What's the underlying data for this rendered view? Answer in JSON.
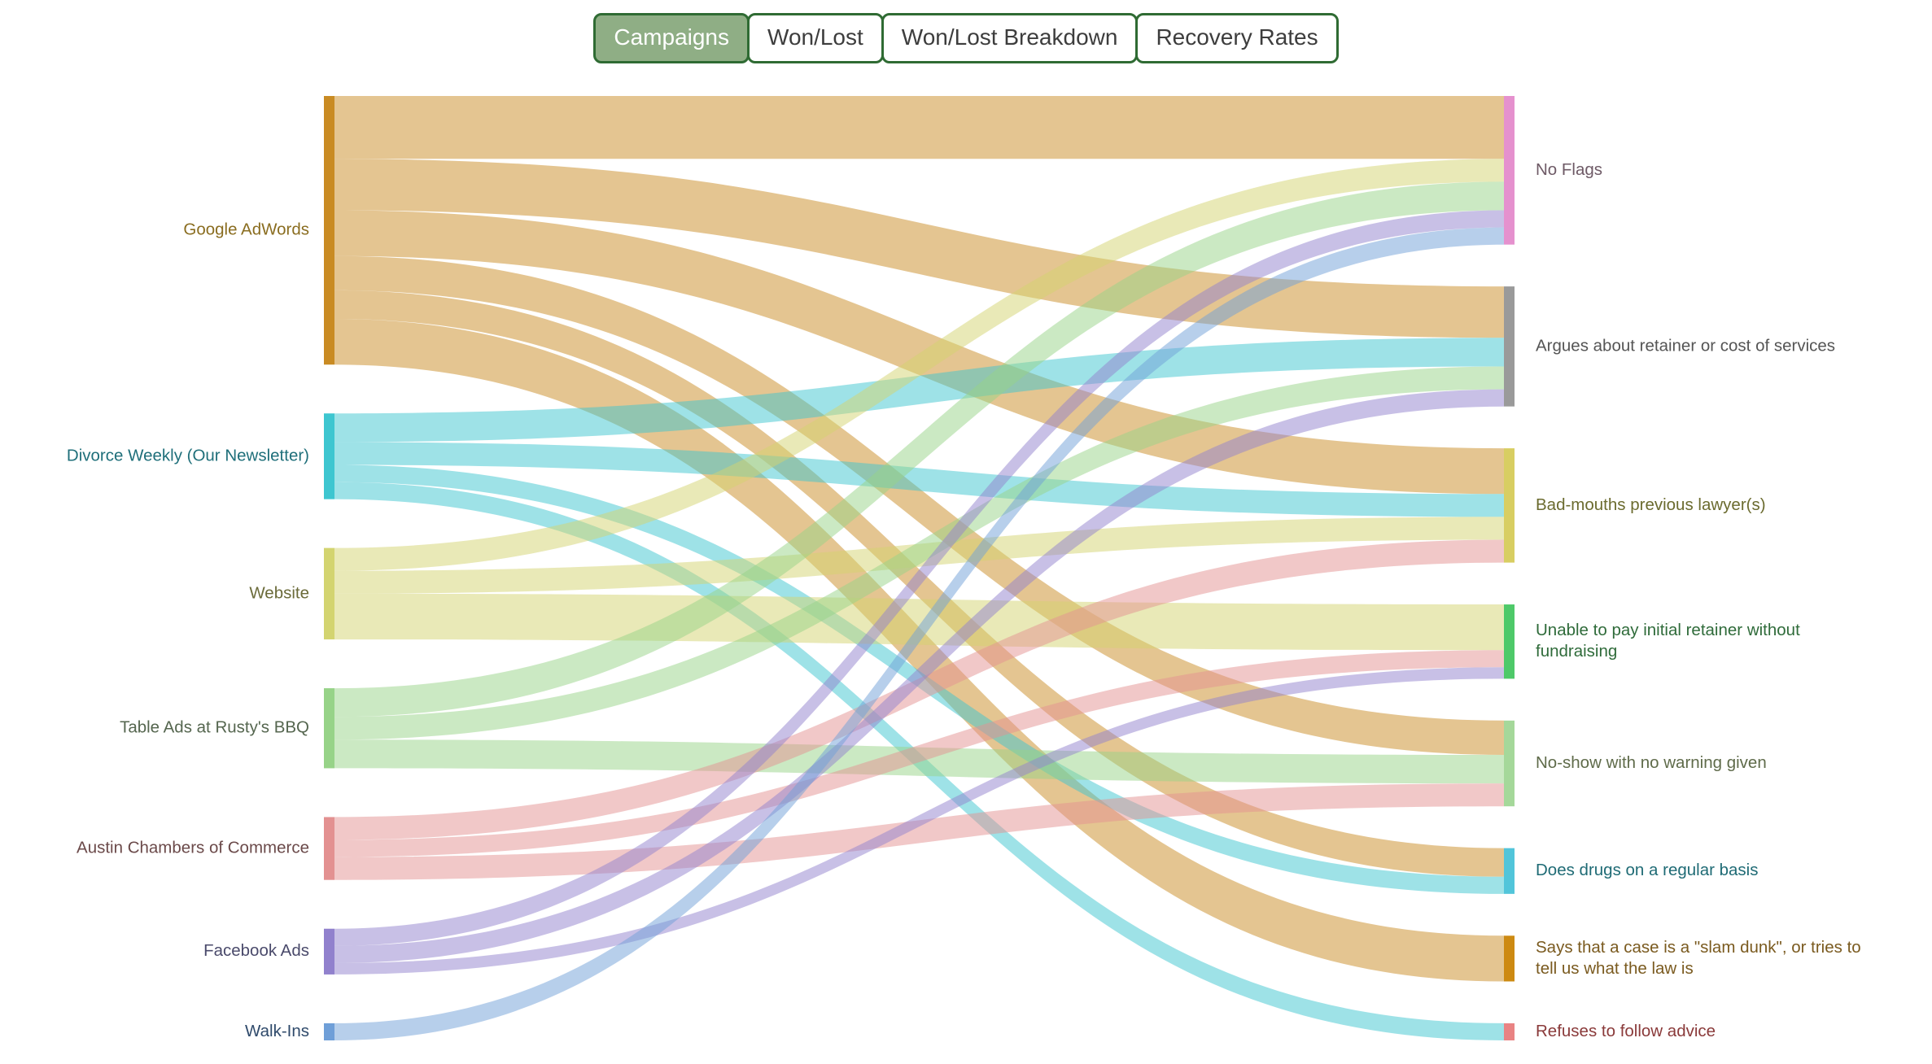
{
  "tabs": {
    "border_color": "#2f6b33",
    "active_bg": "#8fae85",
    "active_text": "#ffffff",
    "inactive_text": "#3d3d3d",
    "items": [
      {
        "label": "Campaigns",
        "active": true
      },
      {
        "label": "Won/Lost",
        "active": false
      },
      {
        "label": "Won/Lost Breakdown",
        "active": false
      },
      {
        "label": "Recovery Rates",
        "active": false
      }
    ]
  },
  "chart_data": {
    "type": "sankey",
    "title": "",
    "orientation": "horizontal",
    "sources": [
      {
        "name": "Google AdWords",
        "color": "#c98b23",
        "label_color": "#8a6d20"
      },
      {
        "name": "Divorce Weekly (Our Newsletter)",
        "color": "#3ec6d0",
        "label_color": "#1f6f7a"
      },
      {
        "name": "Website",
        "color": "#d3d470",
        "label_color": "#6b6b3a"
      },
      {
        "name": "Table Ads at Rusty's BBQ",
        "color": "#97d388",
        "label_color": "#55664f"
      },
      {
        "name": "Austin Chambers of Commerce",
        "color": "#e39191",
        "label_color": "#6b4a4a"
      },
      {
        "name": "Facebook Ads",
        "color": "#9181cd",
        "label_color": "#4a4a6b"
      },
      {
        "name": "Walk-Ins",
        "color": "#6f9fd8",
        "label_color": "#2f4a6b"
      }
    ],
    "targets": [
      {
        "name": "No Flags",
        "color": "#e591ce",
        "label_color": "#6e5a66"
      },
      {
        "name": "Argues about retainer or cost of services",
        "color": "#9a9a9a",
        "label_color": "#555555"
      },
      {
        "name": "Bad-mouths previous lawyer(s)",
        "color": "#d8ce62",
        "label_color": "#6b6b2f"
      },
      {
        "name": "Unable to pay initial retainer without fundraising",
        "color": "#4ec969",
        "label_color": "#2f6b3a"
      },
      {
        "name": "No-show with no warning given",
        "color": "#a5d89a",
        "label_color": "#5f6b4a"
      },
      {
        "name": "Does drugs on a regular basis",
        "color": "#52c5da",
        "label_color": "#1f6b75"
      },
      {
        "name": "Says that a case is a \"slam dunk\", or tries to tell us what the law is",
        "color": "#cd8a12",
        "label_color": "#7a5a1f"
      },
      {
        "name": "Refuses to follow advice",
        "color": "#e98383",
        "label_color": "#8a3a3a"
      }
    ],
    "links": [
      {
        "source": "Google AdWords",
        "target": "No Flags",
        "value": 11
      },
      {
        "source": "Google AdWords",
        "target": "Argues about retainer or cost of services",
        "value": 9
      },
      {
        "source": "Google AdWords",
        "target": "Bad-mouths previous lawyer(s)",
        "value": 8
      },
      {
        "source": "Google AdWords",
        "target": "No-show with no warning given",
        "value": 6
      },
      {
        "source": "Google AdWords",
        "target": "Does drugs on a regular basis",
        "value": 5
      },
      {
        "source": "Google AdWords",
        "target": "Says that a case is a \"slam dunk\", or tries to tell us what the law is",
        "value": 8
      },
      {
        "source": "Divorce Weekly (Our Newsletter)",
        "target": "Argues about retainer or cost of services",
        "value": 5
      },
      {
        "source": "Divorce Weekly (Our Newsletter)",
        "target": "Bad-mouths previous lawyer(s)",
        "value": 4
      },
      {
        "source": "Divorce Weekly (Our Newsletter)",
        "target": "Does drugs on a regular basis",
        "value": 3
      },
      {
        "source": "Divorce Weekly (Our Newsletter)",
        "target": "Refuses to follow advice",
        "value": 3
      },
      {
        "source": "Website",
        "target": "No Flags",
        "value": 4
      },
      {
        "source": "Website",
        "target": "Bad-mouths previous lawyer(s)",
        "value": 4
      },
      {
        "source": "Website",
        "target": "Unable to pay initial retainer without fundraising",
        "value": 8
      },
      {
        "source": "Table Ads at Rusty's BBQ",
        "target": "No Flags",
        "value": 5
      },
      {
        "source": "Table Ads at Rusty's BBQ",
        "target": "Argues about retainer or cost of services",
        "value": 4
      },
      {
        "source": "Table Ads at Rusty's BBQ",
        "target": "No-show with no warning given",
        "value": 5
      },
      {
        "source": "Austin Chambers of Commerce",
        "target": "Bad-mouths previous lawyer(s)",
        "value": 4
      },
      {
        "source": "Austin Chambers of Commerce",
        "target": "Unable to pay initial retainer without fundraising",
        "value": 3
      },
      {
        "source": "Austin Chambers of Commerce",
        "target": "No-show with no warning given",
        "value": 4
      },
      {
        "source": "Facebook Ads",
        "target": "No Flags",
        "value": 3
      },
      {
        "source": "Facebook Ads",
        "target": "Argues about retainer or cost of services",
        "value": 3
      },
      {
        "source": "Facebook Ads",
        "target": "Unable to pay initial retainer without fundraising",
        "value": 2
      },
      {
        "source": "Walk-Ins",
        "target": "No Flags",
        "value": 3
      }
    ],
    "link_opacity": 0.5
  }
}
